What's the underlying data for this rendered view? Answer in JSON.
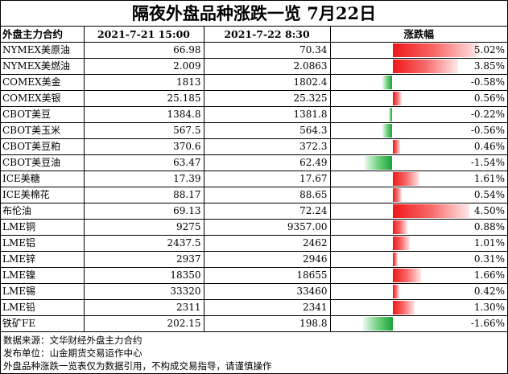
{
  "title": "隔夜外盘品种涨跌一览 7月22日",
  "headers": {
    "name": "外盘主力合约",
    "date1": "2021-7-21 15:00",
    "date2": "2021-7-22 8:30",
    "change": "涨跌幅"
  },
  "rows": [
    {
      "name": "NYMEX美原油",
      "v1": "66.98",
      "v2": "70.34",
      "pct": "5.02%",
      "change": 5.02
    },
    {
      "name": "NYMEX美燃油",
      "v1": "2.009",
      "v2": "2.0863",
      "pct": "3.85%",
      "change": 3.85
    },
    {
      "name": "COMEX美金",
      "v1": "1813",
      "v2": "1802.4",
      "pct": "-0.58%",
      "change": -0.58
    },
    {
      "name": "COMEX美银",
      "v1": "25.185",
      "v2": "25.325",
      "pct": "0.56%",
      "change": 0.56
    },
    {
      "name": "CBOT美豆",
      "v1": "1384.8",
      "v2": "1381.8",
      "pct": "-0.22%",
      "change": -0.22
    },
    {
      "name": "CBOT美玉米",
      "v1": "567.5",
      "v2": "564.3",
      "pct": "-0.56%",
      "change": -0.56
    },
    {
      "name": "CBOT美豆粕",
      "v1": "370.6",
      "v2": "372.3",
      "pct": "0.46%",
      "change": 0.46
    },
    {
      "name": "CBOT美豆油",
      "v1": "63.47",
      "v2": "62.49",
      "pct": "-1.54%",
      "change": -1.54
    },
    {
      "name": "ICE美糖",
      "v1": "17.39",
      "v2": "17.67",
      "pct": "1.61%",
      "change": 1.61
    },
    {
      "name": "ICE美棉花",
      "v1": "88.17",
      "v2": "88.65",
      "pct": "0.54%",
      "change": 0.54
    },
    {
      "name": "布伦油",
      "v1": "69.13",
      "v2": "72.24",
      "pct": "4.50%",
      "change": 4.5
    },
    {
      "name": "LME铜",
      "v1": "9275",
      "v2": "9357.00",
      "pct": "0.88%",
      "change": 0.88
    },
    {
      "name": "LME铝",
      "v1": "2437.5",
      "v2": "2462",
      "pct": "1.01%",
      "change": 1.01
    },
    {
      "name": "LME锌",
      "v1": "2937",
      "v2": "2946",
      "pct": "0.31%",
      "change": 0.31
    },
    {
      "name": "LME镍",
      "v1": "18350",
      "v2": "18655",
      "pct": "1.66%",
      "change": 1.66
    },
    {
      "name": "LME锡",
      "v1": "33320",
      "v2": "33460",
      "pct": "0.42%",
      "change": 0.42
    },
    {
      "name": "LME铅",
      "v1": "2311",
      "v2": "2341",
      "pct": "1.30%",
      "change": 1.3
    },
    {
      "name": "铁矿FE",
      "v1": "202.15",
      "v2": "198.8",
      "pct": "-1.66%",
      "change": -1.66
    }
  ],
  "notes": [
    "数据来源：文华财经外盘主力合约",
    "发布单位：山金期货交易运作中心",
    "外盘品种涨跌一览表仅为数据引用，不构成交易指导，请谨慎操作"
  ],
  "colors": {
    "rise": "#f01818",
    "fall": "#1aa33a"
  }
}
